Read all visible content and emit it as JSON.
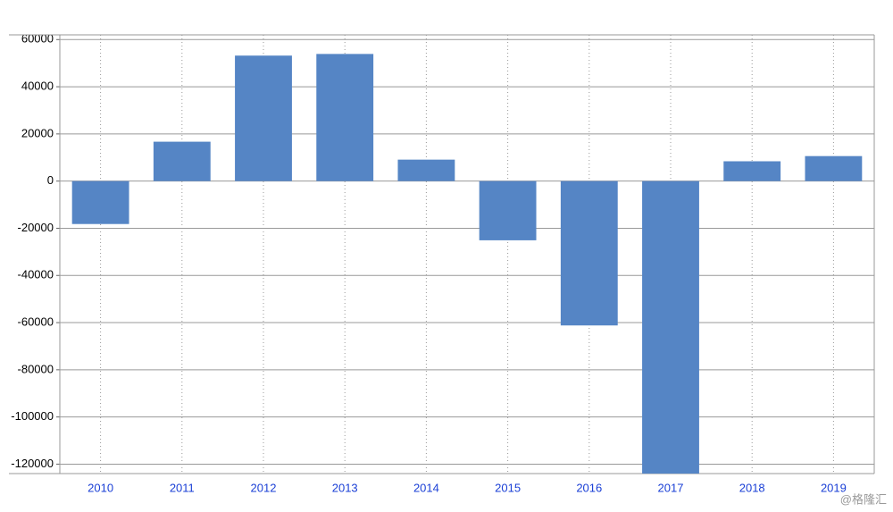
{
  "chart_data": {
    "type": "bar",
    "categories": [
      "2010",
      "2011",
      "2012",
      "2013",
      "2014",
      "2015",
      "2016",
      "2017",
      "2018",
      "2019"
    ],
    "values": [
      -18200,
      16700,
      53200,
      53900,
      9100,
      -25100,
      -61200,
      -124000,
      8400,
      10600
    ],
    "color": "#5585c5",
    "ylim": [
      -124000,
      62000
    ],
    "yticks": [
      -120000,
      -100000,
      -80000,
      -60000,
      -40000,
      -20000,
      0,
      20000,
      40000,
      60000
    ],
    "grid": true
  },
  "watermark": "@格隆汇"
}
